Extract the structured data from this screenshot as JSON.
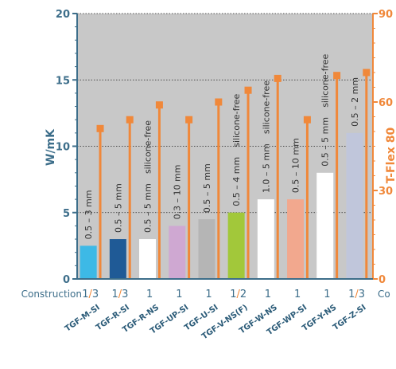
{
  "chart_data": {
    "type": "bar",
    "ylabel": "W/mK",
    "ylabel_right": "T-Flex 80",
    "ylim": [
      0,
      20
    ],
    "ylim_right": [
      0,
      90
    ],
    "yticks": [
      "0",
      "5",
      "10",
      "15",
      "20"
    ],
    "yticks_right": [
      "0",
      "30",
      "60",
      "90"
    ],
    "grid": "dotted horizontal",
    "plot_background": "#c8c8c8",
    "left_axis_color": "#3d6e8a",
    "right_axis_color": "#f0883a",
    "categories": [
      "TGF-M-SI",
      "TGF-R-SI",
      "TGF-R-NS",
      "TGF-UP-SI",
      "TGF-U-SI",
      "TGF-V-NS(F)",
      "TGF-W-NS",
      "TGF-WP-SI",
      "TGF-Y-NS",
      "TGF-Z-SI"
    ],
    "bar_values": [
      2.5,
      3.0,
      3.0,
      4.0,
      4.5,
      5.0,
      6.0,
      6.0,
      8.0,
      11.0
    ],
    "bar_colors": [
      "#3db9e6",
      "#1f5a96",
      "#ffffff",
      "#cfa8d2",
      "#b5b5b5",
      "#a2c83a",
      "#ffffff",
      "#f2a88e",
      "#ffffff",
      "#c0c6db"
    ],
    "bar_labels": [
      "0.5 – 3 mm",
      "0.5 – 5 mm",
      "0.5 – 5 mm",
      "0.3 – 10 mm",
      "0.5 – 5 mm",
      "0.5 – 4 mm",
      "1.0 – 5 mm",
      "0.5 – 10 mm",
      "0.5 – 5 mm",
      "0.5 – 2 mm"
    ],
    "annotations": [
      "",
      "",
      "silicone-free",
      "",
      "",
      "silicone-free",
      "silicone-free",
      "",
      "silicone-free",
      ""
    ],
    "series": [
      {
        "values": [
          51,
          54,
          59,
          54,
          60,
          64,
          68,
          54,
          69,
          70
        ]
      }
    ],
    "construction_label": "Construction",
    "construction_values": [
      [
        "1",
        "/",
        "3"
      ],
      [
        "1",
        "/",
        "3"
      ],
      [
        "1"
      ],
      [
        "1"
      ],
      [
        "1"
      ],
      [
        "1",
        "/",
        "2"
      ],
      [
        "1"
      ],
      [
        "1"
      ],
      [
        "1"
      ],
      [
        "1",
        "/",
        "3"
      ]
    ],
    "construction_right_label": "Co"
  }
}
